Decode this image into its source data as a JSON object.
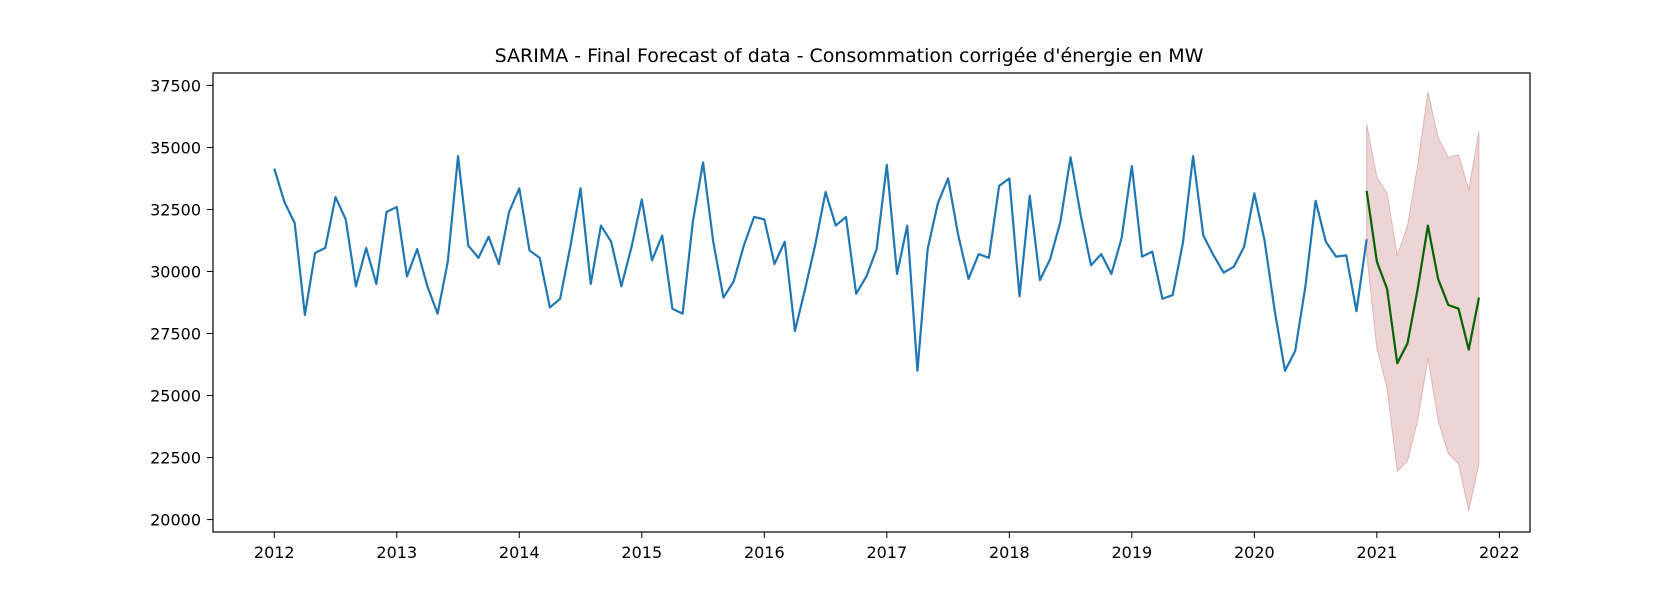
{
  "chart_data": {
    "type": "line",
    "title": "SARIMA - Final Forecast of data - Consommation corrigée d'énergie en MW",
    "xlabel": "",
    "ylabel": "",
    "x_axis": "date",
    "xlim": [
      "2011-07",
      "2022-04"
    ],
    "ylim": [
      19500,
      38000
    ],
    "x_ticks": [
      "2012",
      "2013",
      "2014",
      "2015",
      "2016",
      "2017",
      "2018",
      "2019",
      "2020",
      "2021",
      "2022"
    ],
    "y_ticks": [
      20000,
      22500,
      25000,
      27500,
      30000,
      32500,
      35000,
      37500
    ],
    "grid": false,
    "legend": "none",
    "colors": {
      "observed": "#1f77b4",
      "forecast": "#006400",
      "interval": "#c77a7c"
    },
    "series": [
      {
        "role": "observed",
        "x": [
          "2012-01",
          "2012-02",
          "2012-03",
          "2012-04",
          "2012-05",
          "2012-06",
          "2012-07",
          "2012-08",
          "2012-09",
          "2012-10",
          "2012-11",
          "2012-12",
          "2013-01",
          "2013-02",
          "2013-03",
          "2013-04",
          "2013-05",
          "2013-06",
          "2013-07",
          "2013-08",
          "2013-09",
          "2013-10",
          "2013-11",
          "2013-12",
          "2014-01",
          "2014-02",
          "2014-03",
          "2014-04",
          "2014-05",
          "2014-06",
          "2014-07",
          "2014-08",
          "2014-09",
          "2014-10",
          "2014-11",
          "2014-12",
          "2015-01",
          "2015-02",
          "2015-03",
          "2015-04",
          "2015-05",
          "2015-06",
          "2015-07",
          "2015-08",
          "2015-09",
          "2015-10",
          "2015-11",
          "2015-12",
          "2016-01",
          "2016-02",
          "2016-03",
          "2016-04",
          "2016-05",
          "2016-06",
          "2016-07",
          "2016-08",
          "2016-09",
          "2016-10",
          "2016-11",
          "2016-12",
          "2017-01",
          "2017-02",
          "2017-03",
          "2017-04",
          "2017-05",
          "2017-06",
          "2017-07",
          "2017-08",
          "2017-09",
          "2017-10",
          "2017-11",
          "2017-12",
          "2018-01",
          "2018-02",
          "2018-03",
          "2018-04",
          "2018-05",
          "2018-06",
          "2018-07",
          "2018-08",
          "2018-09",
          "2018-10",
          "2018-11",
          "2018-12",
          "2019-01",
          "2019-02",
          "2019-03",
          "2019-04",
          "2019-05",
          "2019-06",
          "2019-07",
          "2019-08",
          "2019-09",
          "2019-10",
          "2019-11",
          "2019-12",
          "2020-01",
          "2020-02",
          "2020-03",
          "2020-04",
          "2020-05",
          "2020-06",
          "2020-07",
          "2020-08",
          "2020-09",
          "2020-10",
          "2020-11",
          "2020-12"
        ],
        "y": [
          34150,
          32800,
          31950,
          28250,
          30750,
          30950,
          33000,
          32100,
          29400,
          30950,
          29500,
          32400,
          32600,
          29800,
          30900,
          29400,
          28300,
          30400,
          34650,
          31050,
          30550,
          31400,
          30300,
          32400,
          33350,
          30850,
          30550,
          28550,
          28900,
          31000,
          33350,
          29500,
          31850,
          31200,
          29400,
          31000,
          32900,
          30450,
          31450,
          28500,
          28300,
          32000,
          34400,
          31200,
          28950,
          29600,
          31050,
          32200,
          32100,
          30300,
          31200,
          27600,
          29300,
          31100,
          33200,
          31850,
          32200,
          29100,
          29800,
          30900,
          34300,
          29900,
          31850,
          26000,
          30900,
          32750,
          33750,
          31450,
          29700,
          30700,
          30550,
          33450,
          33750,
          29000,
          33050,
          29650,
          30500,
          32000,
          34600,
          32250,
          30250,
          30700,
          29900,
          31350,
          34250,
          30600,
          30800,
          28900,
          29050,
          31150,
          34650,
          31450,
          30650,
          29950,
          30200,
          31000,
          33150,
          31250,
          28400,
          26000,
          26800,
          29400,
          32850,
          31200,
          30600,
          30650,
          28400,
          31300
        ]
      },
      {
        "role": "forecast",
        "x": [
          "2020-12",
          "2021-01",
          "2021-02",
          "2021-03",
          "2021-04",
          "2021-05",
          "2021-06",
          "2021-07",
          "2021-08",
          "2021-09",
          "2021-10",
          "2021-11"
        ],
        "y": [
          33250,
          30400,
          29300,
          26300,
          27100,
          29300,
          31850,
          29700,
          28650,
          28500,
          26850,
          28950
        ]
      },
      {
        "role": "interval",
        "x": [
          "2020-12",
          "2021-01",
          "2021-02",
          "2021-03",
          "2021-04",
          "2021-05",
          "2021-06",
          "2021-07",
          "2021-08",
          "2021-09",
          "2021-10",
          "2021-11"
        ],
        "lower": [
          30700,
          26900,
          25300,
          21950,
          22350,
          24000,
          26500,
          24000,
          22650,
          22250,
          20350,
          22250
        ],
        "upper": [
          35950,
          33800,
          33150,
          30650,
          31850,
          34300,
          37250,
          35400,
          34600,
          34700,
          33300,
          35650
        ]
      }
    ]
  }
}
